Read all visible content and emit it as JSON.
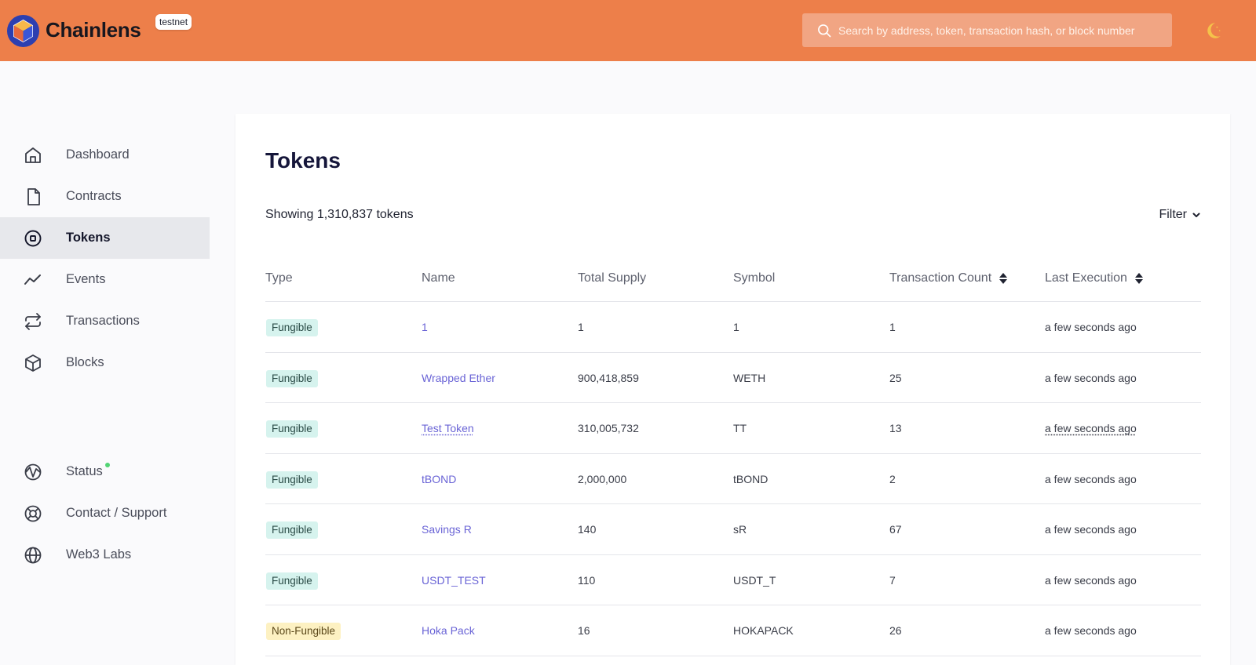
{
  "header": {
    "brand": "Chainlens",
    "env_badge": "testnet",
    "search_placeholder": "Search by address, token, transaction hash, or block number",
    "colors": {
      "header_bg": "#ed7f4a",
      "accent": "#6a64d6"
    }
  },
  "sidebar": {
    "items": [
      {
        "label": "Dashboard",
        "icon": "home-icon"
      },
      {
        "label": "Contracts",
        "icon": "file-icon"
      },
      {
        "label": "Tokens",
        "icon": "token-icon",
        "active": true
      },
      {
        "label": "Events",
        "icon": "activity-icon"
      },
      {
        "label": "Transactions",
        "icon": "repeat-icon"
      },
      {
        "label": "Blocks",
        "icon": "cube-icon"
      }
    ],
    "bottom_items": [
      {
        "label": "Status",
        "icon": "pulse-icon"
      },
      {
        "label": "Contact / Support",
        "icon": "lifebuoy-icon"
      },
      {
        "label": "Web3 Labs",
        "icon": "globe-icon"
      }
    ]
  },
  "main": {
    "title": "Tokens",
    "count_text": "Showing 1,310,837 tokens",
    "filter_label": "Filter",
    "table": {
      "headers": {
        "type": "Type",
        "name": "Name",
        "supply": "Total Supply",
        "symbol": "Symbol",
        "count": "Transaction Count",
        "last": "Last Execution"
      },
      "rows": [
        {
          "type": "Fungible",
          "name": "1",
          "supply": "1",
          "symbol": "1",
          "count": "1",
          "last": "a few seconds ago"
        },
        {
          "type": "Fungible",
          "name": "Wrapped Ether",
          "supply": "900,418,859",
          "symbol": "WETH",
          "count": "25",
          "last": "a few seconds ago"
        },
        {
          "type": "Fungible",
          "name": "Test Token",
          "supply": "310,005,732",
          "symbol": "TT",
          "count": "13",
          "last": "a few seconds ago"
        },
        {
          "type": "Fungible",
          "name": "tBOND",
          "supply": "2,000,000",
          "symbol": "tBOND",
          "count": "2",
          "last": "a few seconds ago"
        },
        {
          "type": "Fungible",
          "name": "Savings R",
          "supply": "140",
          "symbol": "sR",
          "count": "67",
          "last": "a few seconds ago"
        },
        {
          "type": "Fungible",
          "name": "USDT_TEST",
          "supply": "110",
          "symbol": "USDT_T",
          "count": "7",
          "last": "a few seconds ago"
        },
        {
          "type": "Non-Fungible",
          "name": "Hoka Pack",
          "supply": "16",
          "symbol": "HOKAPACK",
          "count": "26",
          "last": "a few seconds ago"
        }
      ]
    }
  }
}
